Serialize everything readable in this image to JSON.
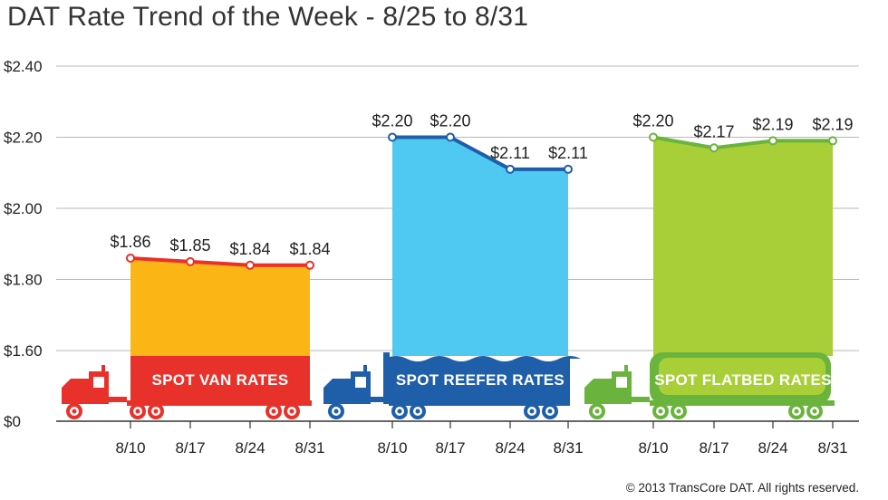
{
  "page": {
    "title": "DAT Rate Trend of the Week - 8/25 to 8/31",
    "copyright": "© 2013 TransCore DAT. All rights reserved."
  },
  "chart_data": {
    "type": "area",
    "title": "DAT Rate Trend of the Week - 8/25 to 8/31",
    "xlabel": "",
    "ylabel": "",
    "ylim": [
      0,
      2.4
    ],
    "yticks": [
      0,
      1.6,
      1.8,
      2.0,
      2.2,
      2.4
    ],
    "ytick_labels": [
      "$0",
      "$1.60",
      "$1.80",
      "$2.00",
      "$2.20",
      "$2.40"
    ],
    "axis_break": "between $0 and $1.60",
    "grid": true,
    "legend": "none",
    "groups": [
      {
        "name": "SPOT VAN RATES",
        "color": "#fbb615",
        "line_color": "#e8312a",
        "truck_color": "#e8312a",
        "x": [
          "8/10",
          "8/17",
          "8/24",
          "8/31"
        ],
        "values": [
          1.86,
          1.85,
          1.84,
          1.84
        ],
        "labels": [
          "$1.86",
          "$1.85",
          "$1.84",
          "$1.84"
        ]
      },
      {
        "name": "SPOT REEFER RATES",
        "color": "#4fc8f2",
        "line_color": "#1f5ea8",
        "truck_color": "#1f5ea8",
        "x": [
          "8/10",
          "8/17",
          "8/24",
          "8/31"
        ],
        "values": [
          2.2,
          2.2,
          2.11,
          2.11
        ],
        "labels": [
          "$2.20",
          "$2.20",
          "$2.11",
          "$2.11"
        ]
      },
      {
        "name": "SPOT FLATBED RATES",
        "color": "#a8cf38",
        "line_color": "#6ab43e",
        "truck_color": "#6ab43e",
        "x": [
          "8/10",
          "8/17",
          "8/24",
          "8/31"
        ],
        "values": [
          2.2,
          2.17,
          2.19,
          2.19
        ],
        "labels": [
          "$2.20",
          "$2.17",
          "$2.19",
          "$2.19"
        ]
      }
    ]
  }
}
